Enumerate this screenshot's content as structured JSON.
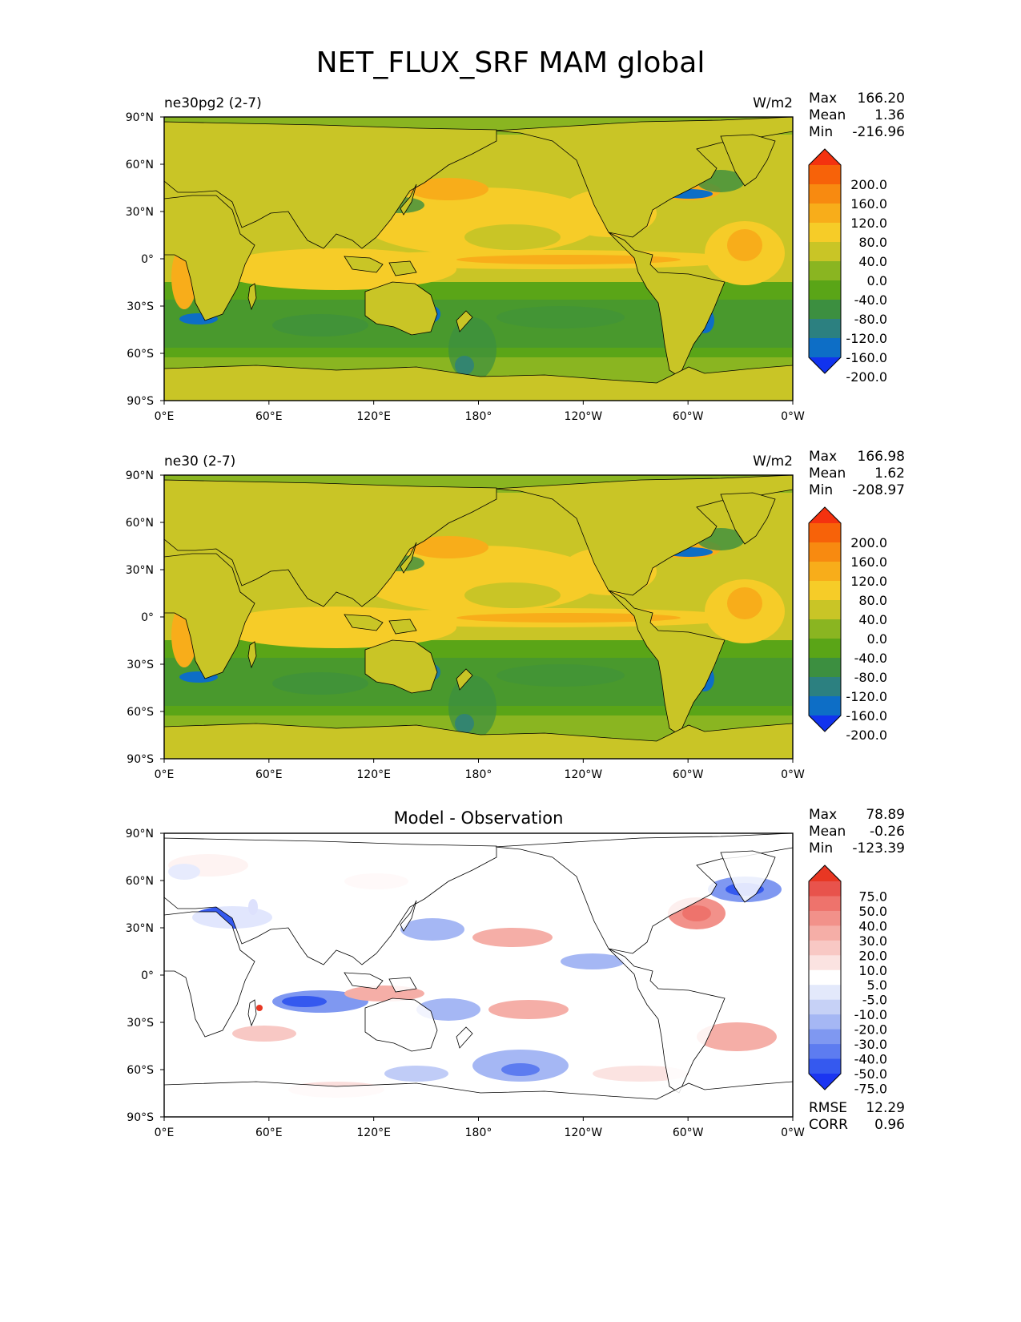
{
  "figure": {
    "title": "NET_FLUX_SRF MAM global"
  },
  "colors": {
    "main_levels": [
      "#1133ee",
      "#0d6ec6",
      "#2c8080",
      "#3c8f40",
      "#5aa517",
      "#8ab521",
      "#c9c526",
      "#f6cc28",
      "#f8ad1a",
      "#f88a10",
      "#f76209",
      "#f4320f"
    ],
    "diff_levels": [
      "#1b35f1",
      "#3559ef",
      "#5d7cf0",
      "#7f98f1",
      "#a5b7f4",
      "#c6d1f6",
      "#e3e9fb",
      "#ffffff",
      "#fbe3e1",
      "#f8c8c4",
      "#f5aea7",
      "#f2918a",
      "#ee736c",
      "#e8534c",
      "#e83723"
    ],
    "ocean_base": "#c9c526",
    "land": "#c9c526",
    "coast": "#000000"
  },
  "axes": {
    "lat_ticks": [
      "90°N",
      "60°N",
      "30°N",
      "0°",
      "30°S",
      "60°S",
      "90°S"
    ],
    "lon_ticks": [
      "0°E",
      "60°E",
      "120°E",
      "180°",
      "120°W",
      "60°W",
      "0°W"
    ]
  },
  "panels": [
    {
      "id": "model1",
      "left_title": "ne30pg2 (2-7)",
      "right_title": "W/m2",
      "center_title": "",
      "stats": [
        {
          "label": "Max",
          "value": "166.20"
        },
        {
          "label": "Mean",
          "value": "1.36"
        },
        {
          "label": "Min",
          "value": "-216.96"
        }
      ],
      "colorbar_labels": [
        "200.0",
        "160.0",
        "120.0",
        "80.0",
        "40.0",
        "0.0",
        "-40.0",
        "-80.0",
        "-120.0",
        "-160.0",
        "-200.0"
      ],
      "footer": []
    },
    {
      "id": "model2",
      "left_title": "ne30 (2-7)",
      "right_title": "W/m2",
      "center_title": "",
      "stats": [
        {
          "label": "Max",
          "value": "166.98"
        },
        {
          "label": "Mean",
          "value": "1.62"
        },
        {
          "label": "Min",
          "value": "-208.97"
        }
      ],
      "colorbar_labels": [
        "200.0",
        "160.0",
        "120.0",
        "80.0",
        "40.0",
        "0.0",
        "-40.0",
        "-80.0",
        "-120.0",
        "-160.0",
        "-200.0"
      ],
      "footer": []
    },
    {
      "id": "diff",
      "left_title": "",
      "right_title": "",
      "center_title": "Model - Observation",
      "stats": [
        {
          "label": "Max",
          "value": "78.89"
        },
        {
          "label": "Mean",
          "value": "-0.26"
        },
        {
          "label": "Min",
          "value": "-123.39"
        }
      ],
      "colorbar_labels": [
        "75.0",
        "50.0",
        "40.0",
        "30.0",
        "20.0",
        "10.0",
        "5.0",
        "-5.0",
        "-10.0",
        "-20.0",
        "-30.0",
        "-40.0",
        "-50.0",
        "-75.0"
      ],
      "footer": [
        {
          "label": "RMSE",
          "value": "12.29"
        },
        {
          "label": "CORR",
          "value": "0.96"
        }
      ]
    }
  ],
  "chart_data": [
    {
      "type": "heatmap",
      "title": "ne30pg2 (2-7)",
      "units": "W/m2",
      "xlim": [
        0,
        360
      ],
      "ylim": [
        -90,
        90
      ],
      "levels": [
        -200,
        -160,
        -120,
        -80,
        -40,
        0,
        40,
        80,
        120,
        160,
        200
      ],
      "stats": {
        "max": 166.2,
        "mean": 1.36,
        "min": -216.96
      }
    },
    {
      "type": "heatmap",
      "title": "ne30 (2-7)",
      "units": "W/m2",
      "xlim": [
        0,
        360
      ],
      "ylim": [
        -90,
        90
      ],
      "levels": [
        -200,
        -160,
        -120,
        -80,
        -40,
        0,
        40,
        80,
        120,
        160,
        200
      ],
      "stats": {
        "max": 166.98,
        "mean": 1.62,
        "min": -208.97
      }
    },
    {
      "type": "heatmap",
      "title": "Model - Observation",
      "xlim": [
        0,
        360
      ],
      "ylim": [
        -90,
        90
      ],
      "levels": [
        -75,
        -50,
        -40,
        -30,
        -20,
        -10,
        -5,
        5,
        10,
        20,
        30,
        40,
        50,
        75
      ],
      "stats": {
        "max": 78.89,
        "mean": -0.26,
        "min": -123.39,
        "rmse": 12.29,
        "corr": 0.96
      }
    }
  ]
}
